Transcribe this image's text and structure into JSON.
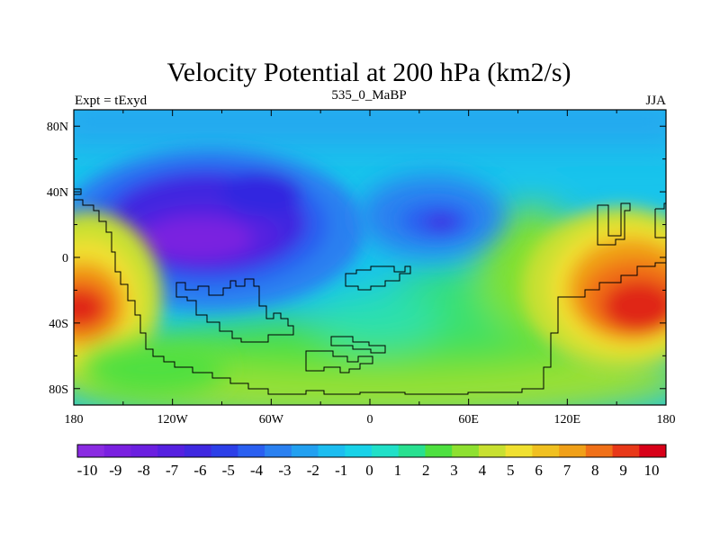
{
  "title": "Velocity Potential at 200 hPa (km2/s)",
  "left_label": "Expt = tExyd",
  "center_label": "535_0_MaBP",
  "right_label": "JJA",
  "chart_data": {
    "type": "heatmap",
    "projection": "cylindrical-equidistant",
    "xlim": [
      -180,
      180
    ],
    "ylim": [
      -90,
      90
    ],
    "x_ticks": [
      {
        "value": -180,
        "label": "180"
      },
      {
        "value": -120,
        "label": "120W"
      },
      {
        "value": -60,
        "label": "60W"
      },
      {
        "value": 0,
        "label": "0"
      },
      {
        "value": 60,
        "label": "60E"
      },
      {
        "value": 120,
        "label": "120E"
      },
      {
        "value": 180,
        "label": "180"
      }
    ],
    "y_ticks": [
      {
        "value": 80,
        "label": "80N"
      },
      {
        "value": 40,
        "label": "40N"
      },
      {
        "value": 0,
        "label": "0"
      },
      {
        "value": -40,
        "label": "40S"
      },
      {
        "value": -80,
        "label": "80S"
      }
    ],
    "colorbar": {
      "labels": [
        "-10",
        "-9",
        "-8",
        "-7",
        "-6",
        "-5",
        "-4",
        "-3",
        "-2",
        "-1",
        "0",
        "1",
        "2",
        "3",
        "4",
        "5",
        "6",
        "7",
        "8",
        "9",
        "10"
      ],
      "values": [
        -10,
        -9,
        -8,
        -7,
        -6,
        -5,
        -4,
        -3,
        -2,
        -1,
        0,
        1,
        2,
        3,
        4,
        5,
        6,
        7,
        8,
        9,
        10
      ],
      "colors": [
        "#8a2be2",
        "#7a20e0",
        "#6b1fe0",
        "#5520e0",
        "#3f28e0",
        "#2c3fe8",
        "#2a5ff0",
        "#2a80f0",
        "#22a0f0",
        "#1cbdf0",
        "#18d2e8",
        "#20e0c8",
        "#28e090",
        "#4ee040",
        "#8ee030",
        "#c8e030",
        "#f0e030",
        "#f0c020",
        "#f0a018",
        "#f07018",
        "#e83818",
        "#d80018"
      ]
    },
    "field_features": [
      {
        "kind": "min",
        "lon": -100,
        "lat": 12,
        "value": -9.3,
        "radius_lon": 55,
        "radius_lat": 30
      },
      {
        "kind": "min",
        "lon": 45,
        "lat": 22,
        "value": -5.5,
        "radius_lon": 14,
        "radius_lat": 6
      },
      {
        "kind": "max",
        "lon": 150,
        "lat": -22,
        "value": 10,
        "radius_lon": 35,
        "radius_lat": 28
      },
      {
        "kind": "max",
        "lon": -178,
        "lat": -25,
        "value": 9.5,
        "radius_lon": 25,
        "radius_lat": 25
      }
    ]
  }
}
